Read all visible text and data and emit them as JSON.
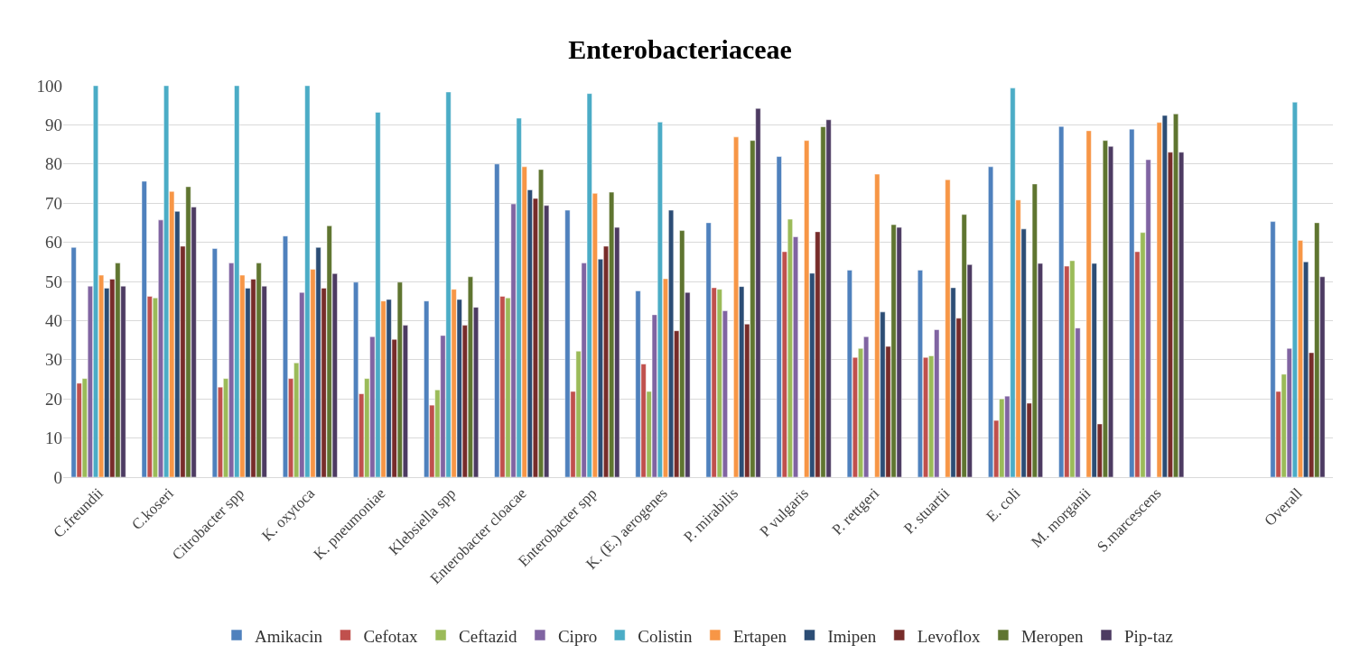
{
  "chart_data": {
    "type": "bar",
    "title": "Enterobacteriaceae",
    "categories": [
      "C.freundii",
      "C.koseri",
      "Citrobacter spp",
      "K. oxytoca",
      "K. pneumoniae",
      "Klebsiella spp",
      "Enterobacter cloacae",
      "Enterobacter spp",
      "K. (E.) aerogenes",
      "P. mirabilis",
      "P vulgaris",
      "P. rettgeri",
      "P. stuartii",
      "E. coli",
      "M. morganii",
      "S.marcescens",
      null,
      "Overall"
    ],
    "series": [
      {
        "name": "Amikacin",
        "color": "#4f81bd",
        "values": [
          58.7,
          75.6,
          58.4,
          61.6,
          49.8,
          45,
          80,
          68.2,
          47.6,
          65,
          81.9,
          52.9,
          52.9,
          79.3,
          89.6,
          88.9,
          null,
          65.3
        ]
      },
      {
        "name": "Cefotax",
        "color": "#c0504d",
        "values": [
          24,
          46.2,
          23,
          25.2,
          21.3,
          18.4,
          46.2,
          21.9,
          28.9,
          48.4,
          57.6,
          30.6,
          30.6,
          14.5,
          53.9,
          57.6,
          null,
          21.9
        ]
      },
      {
        "name": "Ceftazid",
        "color": "#9bbb59",
        "values": [
          25.2,
          45.8,
          25.2,
          29.2,
          25.2,
          22.3,
          45.8,
          32.2,
          21.9,
          48,
          65.9,
          32.9,
          31,
          20,
          55.3,
          62.5,
          null,
          26.3
        ]
      },
      {
        "name": "Cipro",
        "color": "#8064a2",
        "values": [
          48.8,
          65.7,
          54.7,
          47.2,
          35.9,
          36.2,
          69.8,
          54.7,
          41.5,
          42.5,
          61.4,
          35.9,
          37.7,
          20.7,
          38.1,
          81.1,
          null,
          32.9
        ]
      },
      {
        "name": "Colistin",
        "color": "#4bacc6",
        "values": [
          100,
          100,
          100,
          100,
          93.2,
          98.4,
          91.7,
          98,
          90.7,
          null,
          null,
          null,
          null,
          99.4,
          null,
          null,
          null,
          95.8
        ]
      },
      {
        "name": "Ertapen",
        "color": "#f79646",
        "values": [
          51.6,
          73,
          51.6,
          53.1,
          45,
          48,
          79.3,
          72.5,
          50.7,
          86.9,
          86,
          77.4,
          76,
          70.8,
          88.5,
          90.6,
          null,
          60.5
        ]
      },
      {
        "name": "Imipen",
        "color": "#2c4d75",
        "values": [
          48.3,
          67.9,
          48.3,
          58.7,
          45.4,
          45.4,
          73.4,
          55.7,
          68.2,
          48.7,
          52.1,
          42.2,
          48.4,
          63.4,
          54.6,
          92.4,
          null,
          55
        ]
      },
      {
        "name": "Levoflox",
        "color": "#772c2a",
        "values": [
          50.6,
          59,
          50.6,
          48.3,
          35.2,
          38.8,
          71.2,
          59,
          37.4,
          39.1,
          62.7,
          33.4,
          40.6,
          18.9,
          13.6,
          83,
          null,
          31.8
        ]
      },
      {
        "name": "Meropen",
        "color": "#5f7530",
        "values": [
          54.7,
          74.2,
          54.7,
          64.2,
          49.8,
          51.2,
          78.6,
          72.8,
          63,
          86,
          89.5,
          64.5,
          67.1,
          74.9,
          86,
          92.8,
          null,
          65
        ]
      },
      {
        "name": "Pip-taz",
        "color": "#4d3b62",
        "values": [
          48.8,
          69,
          48.8,
          52,
          38.8,
          43.4,
          69.4,
          63.8,
          47.2,
          94.2,
          91.3,
          63.8,
          54.3,
          54.6,
          84.5,
          83,
          null,
          51.2
        ]
      }
    ],
    "ylim": [
      0,
      100
    ],
    "yticks": [
      0,
      10,
      20,
      30,
      40,
      50,
      60,
      70,
      80,
      90,
      100
    ],
    "grid": "y",
    "legend": "bottom"
  }
}
